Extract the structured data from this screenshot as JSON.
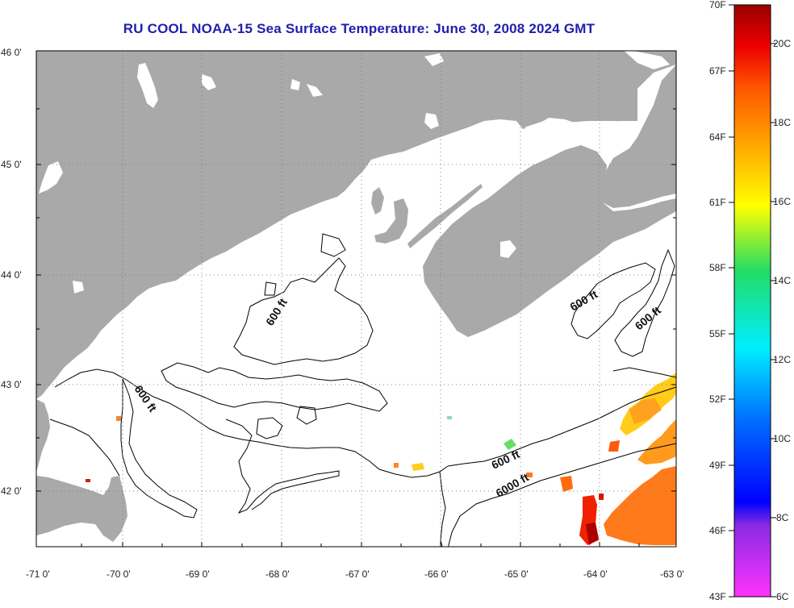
{
  "title": "RU COOL  NOAA-15  Sea Surface Temperature:  June 30, 2008 2024 GMT",
  "colors": {
    "land": "#a9a9a9",
    "water": "#ffffff",
    "contour": "#000000",
    "grid": "#808080",
    "title": "#1f1faa"
  },
  "lat_labels": [
    "46 0'",
    "45 0'",
    "44 0'",
    "43 0'",
    "42 0'"
  ],
  "lon_labels": [
    "-71 0'",
    "-70 0'",
    "-69 0'",
    "-68 0'",
    "-67 0'",
    "-66 0'",
    "-65 0'",
    "-64 0'",
    "-63 0'"
  ],
  "contour_labels": [
    "600 ft",
    "600 ft",
    "600 ft",
    "600 ft",
    "600 ft",
    "6000 ft"
  ],
  "colorbar": {
    "fahrenheit": [
      "70F",
      "67F",
      "64F",
      "61F",
      "58F",
      "55F",
      "52F",
      "49F",
      "46F",
      "43F"
    ],
    "celsius": [
      "20C",
      "18C",
      "16C",
      "14C",
      "12C",
      "10C",
      "8C",
      "6C"
    ]
  }
}
